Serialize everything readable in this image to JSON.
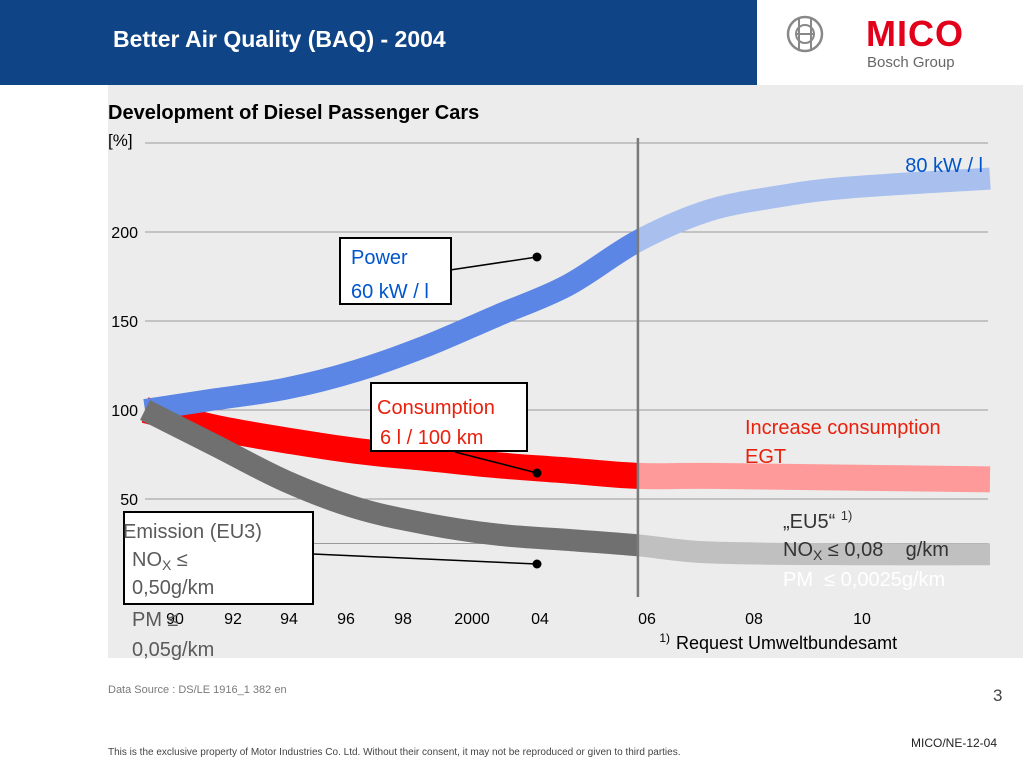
{
  "header": {
    "title": "Better Air Quality (BAQ) - 2004"
  },
  "logo": {
    "brand": "MICO",
    "subtitle": "Bosch Group",
    "icon": "bosch-armature-icon",
    "brand_color": "#e2001a"
  },
  "colors": {
    "header_bg": "#0f4486",
    "power": "#5b86e5",
    "power_future": "#a9c0ef",
    "consumption": "#ff0000",
    "consumption_future": "#ff9a9a",
    "emission": "#707070",
    "emission_future": "#c0c0c0",
    "blue_text": "#0055cc",
    "red_text": "#e8200c"
  },
  "chart_data": {
    "type": "line",
    "title": "Development of Diesel Passenger Cars",
    "ylabel": "[%]",
    "xlabel": "",
    "ylim": [
      0,
      250
    ],
    "x_ticks": [
      "90",
      "92",
      "94",
      "96",
      "98",
      "2000",
      "04",
      "06",
      "08",
      "10"
    ],
    "y_ticks": [
      "50",
      "100",
      "150",
      "200"
    ],
    "grid": true,
    "reference_line_x": "04",
    "series": [
      {
        "name": "Power",
        "x": [
          1990,
          1992,
          1994,
          1996,
          1998,
          2000,
          2002,
          2004,
          2006,
          2008,
          2010,
          2014
        ],
        "values": [
          100,
          106,
          112,
          122,
          136,
          153,
          170,
          195,
          212,
          220,
          225,
          230
        ]
      },
      {
        "name": "Consumption",
        "x": [
          1990,
          1992,
          1994,
          1996,
          1998,
          2000,
          2002,
          2004,
          2006,
          2010,
          2014
        ],
        "values": [
          100,
          90,
          83,
          77,
          73,
          69,
          66,
          63,
          63,
          62,
          61
        ]
      },
      {
        "name": "Emission (EU3)",
        "x": [
          1990,
          1992,
          1994,
          1996,
          1998,
          2000,
          2002,
          2004,
          2006,
          2010,
          2014
        ],
        "values": [
          100,
          80,
          60,
          45,
          36,
          30,
          27,
          24,
          20,
          19,
          19
        ]
      }
    ],
    "annotations": {
      "power_box": [
        "Power",
        "60 kW / l"
      ],
      "power_future": "80 kW / l",
      "consumption_box": [
        "Consumption",
        "6 l / 100 km"
      ],
      "consumption_future": [
        "Increase consumption",
        "EGT"
      ],
      "emission_box": [
        "Emission (EU3)",
        "NO",
        "X",
        " ≤",
        "0,50g/km",
        "PM",
        " ≤",
        "0,05g/km"
      ],
      "eu5": [
        "„EU5“",
        "1)",
        "NO",
        "X",
        " ≤ 0,08    g/km",
        "PM  ≤ 0,0025g/km"
      ],
      "footnote_marker": "1)",
      "footnote": "Request Umweltbundesamt"
    }
  },
  "footer": {
    "source": "Data Source : DS/LE 1916_1 382 en",
    "page": "3",
    "code": "MICO/NE-12-04",
    "disclaimer": "This is the exclusive property of Motor Industries Co. Ltd. Without their consent, it may not be reproduced or given to third parties."
  }
}
